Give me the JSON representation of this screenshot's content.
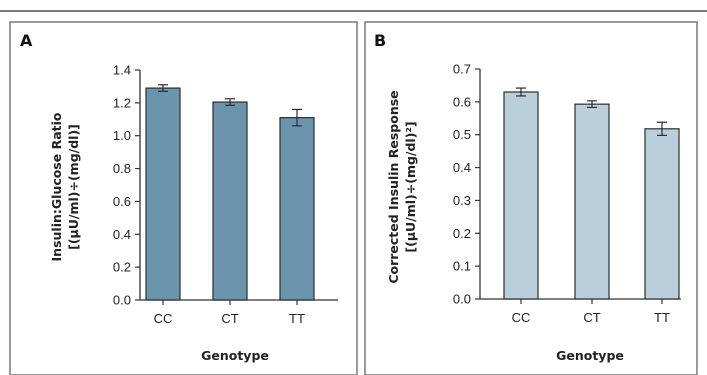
{
  "colors": {
    "frame": "#7a7a7a",
    "panel_a_bar": "#6b95ad",
    "panel_b_bar": "#b9cfdc",
    "bar_outline": "#2c2c2c",
    "axis": "#333333"
  },
  "chart_data": [
    {
      "type": "bar",
      "panel": "A",
      "title": "",
      "xlabel": "Genotype",
      "ylabel_line1": "Insulin:Glucose Ratio",
      "ylabel_line2": "[(μU/ml)÷(mg/dl)]",
      "categories": [
        "CC",
        "CT",
        "TT"
      ],
      "values": [
        1.29,
        1.205,
        1.11
      ],
      "errors": [
        0.02,
        0.02,
        0.05
      ],
      "ylim": [
        0.0,
        1.4
      ],
      "yticks": [
        "0.0",
        "0.2",
        "0.4",
        "0.6",
        "0.8",
        "1.0",
        "1.2",
        "1.4"
      ],
      "grid": false,
      "legend": "none"
    },
    {
      "type": "bar",
      "panel": "B",
      "title": "",
      "xlabel": "Genotype",
      "ylabel_line1": "Corrected Insulin Response",
      "ylabel_line2": "[(μU/ml)÷(mg/dl)²]",
      "categories": [
        "CC",
        "CT",
        "TT"
      ],
      "values": [
        0.63,
        0.593,
        0.518
      ],
      "errors": [
        0.012,
        0.01,
        0.02
      ],
      "ylim": [
        0.0,
        0.7
      ],
      "yticks": [
        "0.0",
        "0.1",
        "0.2",
        "0.3",
        "0.4",
        "0.5",
        "0.6",
        "0.7"
      ],
      "grid": false,
      "legend": "none"
    }
  ]
}
